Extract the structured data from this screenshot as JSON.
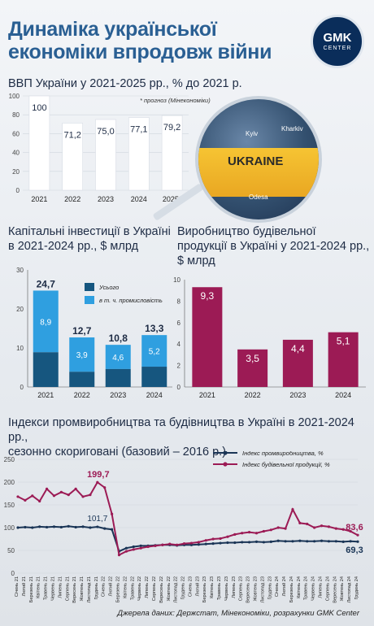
{
  "title_line1": "Динаміка української",
  "title_line2": "економіки впродовж війни",
  "logo": {
    "line1": "GMK",
    "line2": "CENTER"
  },
  "map": {
    "label": "UKRAINE",
    "city1": "Kyiv",
    "city2": "Kharkiv",
    "city3": "Odesa"
  },
  "source": "Джерела даних: Держстат, Мінекономіки, розрахунки GMK Center",
  "chart_data": [
    {
      "type": "bar",
      "title": "ВВП України у 2021-2025 рр., % до 2021 р.",
      "note": "* прогноз (Мінекономіки)",
      "categories": [
        "2021",
        "2022",
        "2023",
        "2024",
        "2025*"
      ],
      "values": [
        100,
        71.2,
        75.0,
        77.1,
        79.2
      ],
      "value_labels": [
        "100",
        "71,2",
        "75,0",
        "77,1",
        "79,2"
      ],
      "yticks": [
        "0",
        "20",
        "40",
        "60",
        "80",
        "100"
      ],
      "ylim": [
        0,
        100
      ]
    },
    {
      "type": "bar",
      "title_line1": "Капітальні інвестиції в Україні",
      "title_line2": "в 2021-2024 рр., $ млрд",
      "categories": [
        "2021",
        "2022",
        "2023",
        "2024"
      ],
      "series": [
        {
          "name": "Усього",
          "values": [
            24.7,
            12.7,
            10.8,
            13.3
          ],
          "labels": [
            "24,7",
            "12,7",
            "10,8",
            "13,3"
          ]
        },
        {
          "name": "в т. ч. промисловість",
          "values": [
            8.9,
            3.9,
            4.6,
            5.2
          ],
          "labels": [
            "8,9",
            "3,9",
            "4,6",
            "5,2"
          ]
        }
      ],
      "yticks": [
        "0",
        "10",
        "20",
        "30"
      ],
      "ylim": [
        0,
        30
      ],
      "colors": {
        "total": "#16567f",
        "industry": "#2f9fe0"
      }
    },
    {
      "type": "bar",
      "title_line1": "Виробництво будівельної",
      "title_line2": "продукції в Україні у 2021-2024 рр.,",
      "title_line3": "$ млрд",
      "categories": [
        "2021",
        "2022",
        "2023",
        "2024"
      ],
      "values": [
        9.3,
        3.5,
        4.4,
        5.1
      ],
      "value_labels": [
        "9,3",
        "3,5",
        "4,4",
        "5,1"
      ],
      "yticks": [
        "0",
        "2",
        "4",
        "6",
        "8",
        "10"
      ],
      "ylim": [
        0,
        10
      ],
      "color": "#9c1b55"
    },
    {
      "type": "line",
      "title_line1": "Індекси промвиробництва та будівництва в Україні в 2021-2024 рр.,",
      "title_line2": "сезонно скориговані (базовий – 2016 р.)",
      "yticks": [
        "0",
        "50",
        "100",
        "150",
        "200",
        "250"
      ],
      "ylim": [
        0,
        250
      ],
      "x": [
        "Січень 21",
        "Лютий 21",
        "Березень 21",
        "Квітень 21",
        "Травень 21",
        "Червень 21",
        "Липень 21",
        "Серпень 21",
        "Вересень 21",
        "Жовтень 21",
        "Листопад 21",
        "Грудень 21",
        "Січень 22",
        "Лютий 22",
        "Березень 22",
        "Квітень 22",
        "Травень 22",
        "Червень 22",
        "Липень 22",
        "Серпень 22",
        "Вересень 22",
        "Жовтень 22",
        "Листопад 22",
        "Грудень 22",
        "Січень 23",
        "Лютий 23",
        "Березень 23",
        "Квітень 23",
        "Травень 23",
        "Червень 23",
        "Липень 23",
        "Серпень 23",
        "Вересень 23",
        "Жовтень 23",
        "Листопад 23",
        "Грудень 23",
        "Січень 24",
        "Лютий 24",
        "Березень 24",
        "Квітень 24",
        "Травень 24",
        "Червень 24",
        "Липень 24",
        "Серпень 24",
        "Вересень 24",
        "Жовтень 24",
        "Листопад 24",
        "Грудень 24"
      ],
      "x_labels": [
        "Січень 21",
        "Лютий 21",
        "Березень 21",
        "Квітень 21",
        "Травень 21",
        "Червень 21",
        "Липень 21",
        "Серпень 21",
        "Вересень 21",
        "Жовтень 21",
        "Листопад 21",
        "Грудень 21",
        "Січень 22",
        "Лютий 22",
        "Березень 22",
        "Квітень 22",
        "Травень 22",
        "Червень 22",
        "Липень 22",
        "Серпень 22",
        "Вересень 22",
        "Жовтень 22",
        "Листопад 22",
        "Грудень 22",
        "Січень 23",
        "Лютий 23",
        "Березень 23",
        "Квітень 23",
        "Травень 23",
        "Червень 23",
        "Липень 23",
        "Серпень 23",
        "Вересень 23",
        "Жовтень 23",
        "Листопад 23",
        "Грудень 23",
        "Січень 24",
        "Лютий 24",
        "Березень 24",
        "Квітень 24",
        "Травень 24",
        "Червень 24",
        "Липень 24",
        "Серпень 24",
        "Вересень 24",
        "Жовтень 24",
        "Листопад 24",
        "Грудень 24"
      ],
      "series": [
        {
          "name": "Індекс промвиробництва, %",
          "color": "#1a3556",
          "values": [
            100,
            101,
            100,
            102,
            101,
            102,
            101,
            103,
            101,
            102,
            100,
            101.7,
            98,
            96,
            48,
            55,
            58,
            60,
            60,
            61,
            62,
            62,
            61,
            62,
            62,
            63,
            64,
            65,
            66,
            67,
            67,
            68,
            68,
            69,
            68,
            69,
            71,
            70,
            70,
            71,
            70,
            70,
            71,
            70,
            70,
            69,
            70,
            69.3
          ]
        },
        {
          "name": "Індекс будівельної продукції, %",
          "color": "#9c1b55",
          "values": [
            168,
            160,
            170,
            158,
            185,
            170,
            178,
            172,
            185,
            168,
            172,
            199.7,
            188,
            130,
            40,
            48,
            52,
            55,
            58,
            60,
            62,
            64,
            62,
            65,
            66,
            68,
            72,
            75,
            76,
            80,
            85,
            88,
            90,
            88,
            92,
            95,
            100,
            98,
            140,
            110,
            108,
            100,
            104,
            102,
            98,
            96,
            92,
            83.6
          ]
        }
      ],
      "annotations": [
        "199,7",
        "101,7",
        "83,6",
        "69,3"
      ]
    }
  ]
}
